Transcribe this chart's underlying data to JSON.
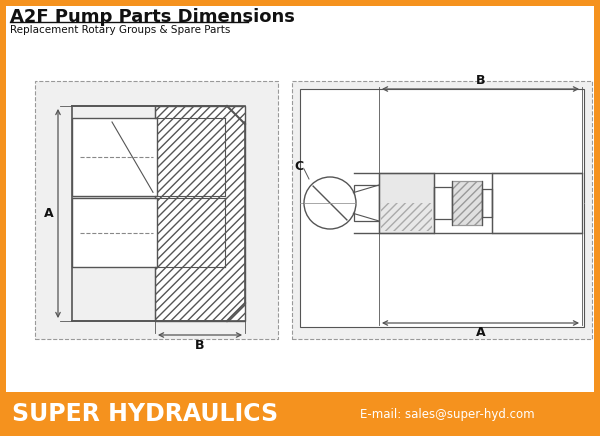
{
  "title": "A2F Pump Parts Dimensions",
  "subtitle": "Replacement Rotary Groups & Spare Parts",
  "footer_text": "SUPER HYDRAULICS",
  "footer_email": "E-mail: sales@super-hyd.com",
  "orange_color": "#F5921E",
  "bg_color": "#FFFFFF",
  "text_dark": "#111111",
  "text_white": "#FFFFFF",
  "lc": "#555555",
  "lc_light": "#999999"
}
